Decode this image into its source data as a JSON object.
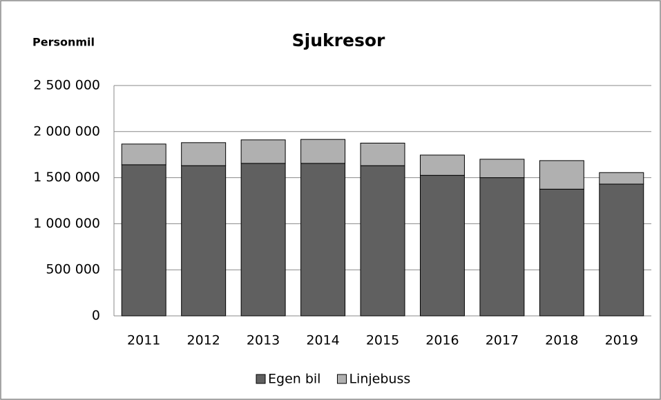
{
  "chart_data": {
    "type": "stacked_bar",
    "title": "Sjukresor",
    "y_label": "Personmil",
    "categories": [
      "2011",
      "2012",
      "2013",
      "2014",
      "2015",
      "2016",
      "2017",
      "2018",
      "2019"
    ],
    "series": [
      {
        "name": "Egen bil",
        "color": "#606060",
        "values": [
          1640000,
          1630000,
          1655000,
          1655000,
          1630000,
          1525000,
          1500000,
          1375000,
          1430000
        ]
      },
      {
        "name": "Linjebuss",
        "color": "#b0b0b0",
        "values": [
          225000,
          250000,
          255000,
          260000,
          245000,
          220000,
          200000,
          310000,
          125000
        ]
      }
    ],
    "ylim": [
      0,
      2500000
    ],
    "yticks": [
      0,
      {
        "value": 500000,
        "label": "500 000"
      },
      {
        "value": 1000000,
        "label": "1 000 000"
      },
      {
        "value": 1500000,
        "label": "1 500 000"
      },
      {
        "value": 2000000,
        "label": "2 000 000"
      },
      {
        "value": 2500000,
        "label": "2 500 000"
      }
    ],
    "grid": true,
    "legend": "bottom"
  }
}
